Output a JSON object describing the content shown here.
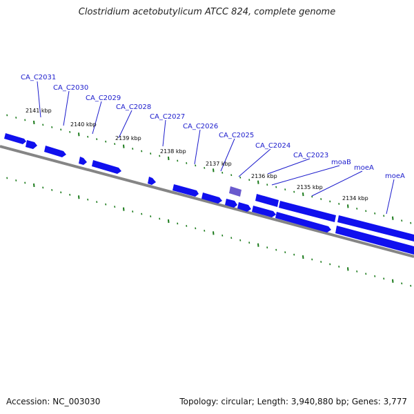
{
  "title": "Clostridium acetobutylicum ATCC 824, complete genome",
  "footer": {
    "accession": "Accession: NC_003030",
    "summary": "Topology: circular; Length: 3,940,880 bp; Genes: 3,777"
  },
  "colors": {
    "gene_fill": "#1010ee",
    "gene_highlight": "#6a5acd",
    "backbone": "#888888",
    "tick": "#1a7a1a",
    "label": "#1a1acc"
  },
  "scale_labels": [
    "2141 kbp",
    "2140 kbp",
    "2139 kbp",
    "2138 kbp",
    "2137 kbp",
    "2136 kbp",
    "2135 kbp",
    "2134 kbp"
  ],
  "genes": [
    {
      "label": "CA_C2031"
    },
    {
      "label": "CA_C2030"
    },
    {
      "label": "CA_C2029"
    },
    {
      "label": "CA_C2028"
    },
    {
      "label": "CA_C2027"
    },
    {
      "label": "CA_C2026"
    },
    {
      "label": "CA_C2025"
    },
    {
      "label": "CA_C2024"
    },
    {
      "label": "CA_C2023"
    },
    {
      "label": "moaB"
    },
    {
      "label": "moeA"
    },
    {
      "label": "moeA"
    }
  ]
}
